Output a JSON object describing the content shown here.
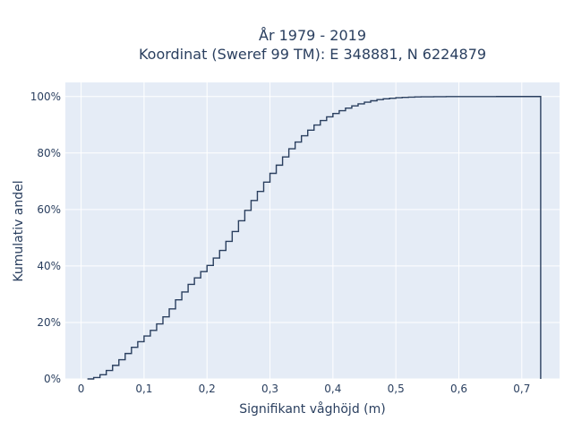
{
  "chart_data": {
    "type": "line",
    "line_shape": "step",
    "title_line1": "År 1979 - 2019",
    "title_line2": "Koordinat (Sweref 99 TM): E 348881, N 6224879",
    "xlabel": "Signifikant våghöjd (m)",
    "ylabel": "Kumulativ andel",
    "xlim": [
      -0.025,
      0.76
    ],
    "ylim": [
      0,
      1.05
    ],
    "x_ticks": [
      0,
      0.1,
      0.2,
      0.3,
      0.4,
      0.5,
      0.6,
      0.7
    ],
    "x_tick_labels": [
      "0",
      "0,1",
      "0,2",
      "0,3",
      "0,4",
      "0,5",
      "0,6",
      "0,7"
    ],
    "y_ticks": [
      0,
      0.2,
      0.4,
      0.6,
      0.8,
      1.0
    ],
    "y_tick_labels": [
      "0%",
      "20%",
      "40%",
      "60%",
      "80%",
      "100%"
    ],
    "grid": true,
    "colors": {
      "plot_bg": "#e5ecf6",
      "grid": "#ffffff",
      "line": "#2a3f5f",
      "text": "#2a3f5f"
    },
    "series": [
      {
        "x": [
          0.01,
          0.02,
          0.03,
          0.04,
          0.05,
          0.06,
          0.07,
          0.08,
          0.09,
          0.1,
          0.11,
          0.12,
          0.13,
          0.14,
          0.15,
          0.16,
          0.17,
          0.18,
          0.19,
          0.2,
          0.21,
          0.22,
          0.23,
          0.24,
          0.25,
          0.26,
          0.27,
          0.28,
          0.29,
          0.3,
          0.31,
          0.32,
          0.33,
          0.34,
          0.35,
          0.36,
          0.37,
          0.38,
          0.39,
          0.4,
          0.41,
          0.42,
          0.43,
          0.44,
          0.45,
          0.46,
          0.47,
          0.48,
          0.49,
          0.5,
          0.51,
          0.52,
          0.53,
          0.54,
          0.56,
          0.58,
          0.6,
          0.63,
          0.66,
          0.69,
          0.73,
          0.73
        ],
        "y": [
          0.0,
          0.005,
          0.015,
          0.03,
          0.048,
          0.068,
          0.09,
          0.112,
          0.132,
          0.152,
          0.172,
          0.195,
          0.22,
          0.248,
          0.28,
          0.308,
          0.335,
          0.358,
          0.38,
          0.402,
          0.428,
          0.455,
          0.487,
          0.522,
          0.56,
          0.597,
          0.632,
          0.664,
          0.697,
          0.728,
          0.757,
          0.786,
          0.815,
          0.839,
          0.861,
          0.881,
          0.899,
          0.915,
          0.928,
          0.94,
          0.95,
          0.959,
          0.967,
          0.974,
          0.98,
          0.985,
          0.989,
          0.992,
          0.994,
          0.996,
          0.997,
          0.998,
          0.9985,
          0.999,
          0.9994,
          0.9997,
          0.9998,
          0.9999,
          1.0,
          1.0,
          1.0,
          0.0
        ]
      }
    ]
  }
}
